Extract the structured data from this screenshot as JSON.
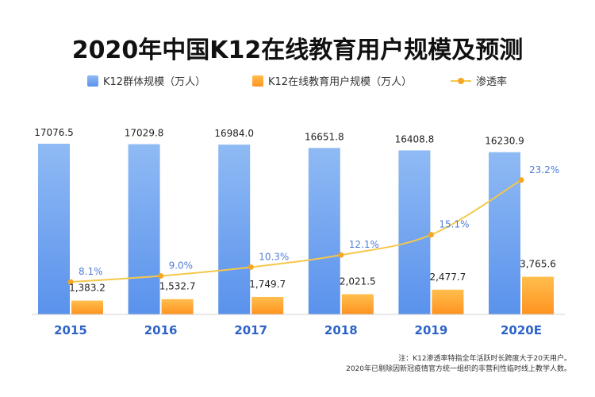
{
  "chart_data": {
    "type": "bar",
    "title": "2020年中国K12在线教育用户规模及预测",
    "categories": [
      "2015",
      "2016",
      "2017",
      "2018",
      "2019",
      "2020E"
    ],
    "series": [
      {
        "name": "K12群体规模（万人）",
        "values": [
          17076.5,
          17029.8,
          16984.0,
          16651.8,
          16408.8,
          16230.9
        ],
        "labels": [
          "17076.5",
          "17029.8",
          "16984.0",
          "16651.8",
          "16408.8",
          "16230.9"
        ]
      },
      {
        "name": "K12在线教育用户规模（万人）",
        "values": [
          1383.2,
          1532.7,
          1749.7,
          2021.5,
          2477.7,
          3765.6
        ],
        "labels": [
          "1,383.2",
          "1,532.7",
          "1,749.7",
          "2,021.5",
          "2,477.7",
          "3,765.6"
        ]
      },
      {
        "name": "渗透率",
        "type": "line",
        "values": [
          8.1,
          9.0,
          10.3,
          12.1,
          15.1,
          23.2
        ],
        "labels": [
          "8.1%",
          "9.0%",
          "10.3%",
          "12.1%",
          "15.1%",
          "23.2%"
        ]
      }
    ],
    "ylim": [
      0,
      17076.5
    ],
    "y2lim": [
      0,
      25
    ],
    "grid": false,
    "legend": "top-center",
    "colors": {
      "bar1_top": "#8fbaf4",
      "bar1_bottom": "#5a92ec",
      "bar2_top": "#ffbe4d",
      "bar2_bottom": "#ff9320",
      "line": "#f5c84a",
      "line_marker": "#f5a623",
      "line_label": "#4f7ed8",
      "axis_label": "#2d63c8"
    }
  },
  "footnote": {
    "line1": "注：K12渗透率特指全年活跃时长跨度大于20天用户。",
    "line2": "2020年已剔除因新冠疫情官方统一组织的非营利性临时线上教学人数。"
  }
}
